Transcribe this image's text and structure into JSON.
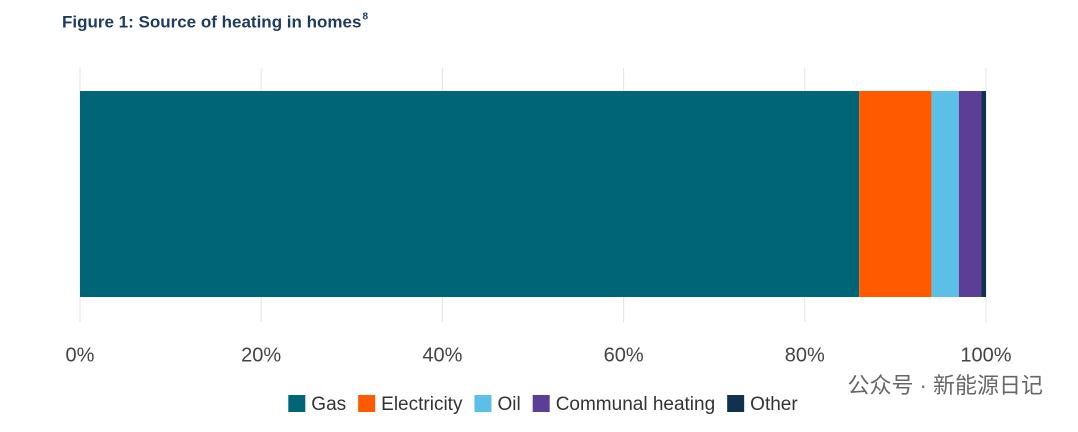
{
  "chart_data": {
    "type": "stacked_barh",
    "title": "Figure 1: Source of heating in homes",
    "title_footnote": "8",
    "series": [
      {
        "name": "Gas",
        "color": "#006677",
        "values": [
          86
        ]
      },
      {
        "name": "Electricity",
        "color": "#ff5a00",
        "values": [
          8
        ]
      },
      {
        "name": "Oil",
        "color": "#5bbfe8",
        "values": [
          3
        ]
      },
      {
        "name": "Communal heating",
        "color": "#5b3f96",
        "values": [
          2.5
        ]
      },
      {
        "name": "Other",
        "color": "#10324f",
        "values": [
          0.5
        ]
      }
    ],
    "xlim": [
      0,
      100
    ],
    "xticks": [
      {
        "value": 0,
        "label": "0%"
      },
      {
        "value": 20,
        "label": "20%"
      },
      {
        "value": 40,
        "label": "40%"
      },
      {
        "value": 60,
        "label": "60%"
      },
      {
        "value": 80,
        "label": "80%"
      },
      {
        "value": 100,
        "label": "100%"
      }
    ],
    "grid": true,
    "legend": "bottom",
    "watermark": "公众号 · 新能源日记"
  }
}
